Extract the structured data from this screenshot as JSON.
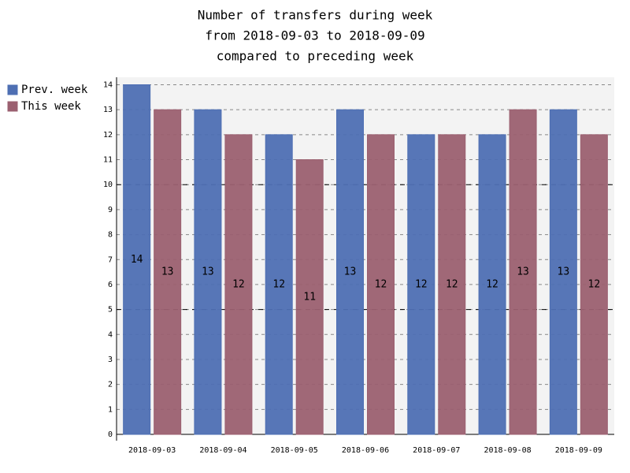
{
  "chart_data": {
    "type": "bar",
    "title": [
      "Number of transfers during week",
      "from 2018-09-03 to 2018-09-09",
      "compared to preceding week"
    ],
    "categories": [
      "2018-09-03",
      "2018-09-04",
      "2018-09-05",
      "2018-09-06",
      "2018-09-07",
      "2018-09-08",
      "2018-09-09"
    ],
    "series": [
      {
        "name": "Prev. week",
        "color": "#4e6fb3",
        "values": [
          14,
          13,
          12,
          13,
          12,
          12,
          13
        ]
      },
      {
        "name": "This week",
        "color": "#9b6070",
        "values": [
          13,
          12,
          11,
          12,
          12,
          13,
          12
        ]
      }
    ],
    "ylim": [
      0,
      14.3
    ],
    "yticks": [
      0,
      1,
      2,
      3,
      4,
      5,
      6,
      7,
      8,
      9,
      10,
      11,
      12,
      13,
      14
    ],
    "major_yticks": [
      5,
      10
    ],
    "grid": true,
    "legend": "top-left",
    "value_labels_shown": true
  }
}
